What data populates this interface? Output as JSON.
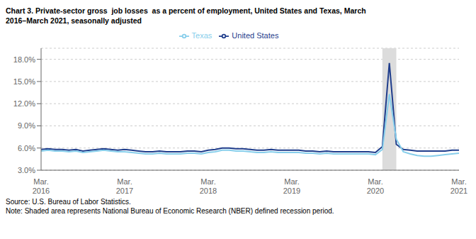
{
  "chart_data": {
    "type": "line",
    "title": "Chart 3. Private-sector gross  job losses  as a percent of employment, United States and Texas, March\n2016–March 2021, seasonally adjusted",
    "annotations": [
      "Source: U.S. Bureau of Labor Statistics.",
      "Note: Shaded area represents National Bureau of Economic Research (NBER) defined recession period."
    ],
    "categories": [
      "Mar.\n2016",
      null,
      null,
      null,
      null,
      null,
      null,
      null,
      null,
      null,
      null,
      null,
      "Mar.\n2017",
      null,
      null,
      null,
      null,
      null,
      null,
      null,
      null,
      null,
      null,
      null,
      "Mar.\n2018",
      null,
      null,
      null,
      null,
      null,
      null,
      null,
      null,
      null,
      null,
      null,
      "Mar.\n2019",
      null,
      null,
      null,
      null,
      null,
      null,
      null,
      null,
      null,
      null,
      null,
      "Mar.\n2020",
      null,
      null,
      null,
      null,
      null,
      null,
      null,
      null,
      null,
      null,
      null,
      "Mar.\n2021"
    ],
    "series": [
      {
        "name": "United States",
        "color": "#1F3D8C",
        "values": [
          5.8,
          5.9,
          5.8,
          5.8,
          5.7,
          5.8,
          5.6,
          5.7,
          5.8,
          5.9,
          5.8,
          5.7,
          5.8,
          5.7,
          5.6,
          5.5,
          5.5,
          5.6,
          5.5,
          5.5,
          5.5,
          5.6,
          5.6,
          5.5,
          5.7,
          5.8,
          6.0,
          6.0,
          5.9,
          5.9,
          5.8,
          5.7,
          5.7,
          5.8,
          5.7,
          5.7,
          5.7,
          5.7,
          5.6,
          5.6,
          5.5,
          5.6,
          5.5,
          5.5,
          5.5,
          5.5,
          5.5,
          5.5,
          5.4,
          6.2,
          17.5,
          6.5,
          5.8,
          5.7,
          5.6,
          5.6,
          5.6,
          5.6,
          5.6,
          5.7,
          5.7
        ]
      },
      {
        "name": "Texas",
        "color": "#87CEEB",
        "values": [
          5.6,
          5.7,
          5.6,
          5.6,
          5.5,
          5.6,
          5.4,
          5.5,
          5.6,
          5.7,
          5.6,
          5.5,
          5.5,
          5.4,
          5.3,
          5.2,
          5.2,
          5.3,
          5.2,
          5.2,
          5.2,
          5.3,
          5.3,
          5.2,
          5.4,
          5.5,
          5.7,
          5.7,
          5.6,
          5.6,
          5.5,
          5.4,
          5.4,
          5.5,
          5.4,
          5.4,
          5.4,
          5.4,
          5.3,
          5.3,
          5.2,
          5.3,
          5.2,
          5.2,
          5.2,
          5.2,
          5.2,
          5.2,
          5.1,
          5.8,
          13.3,
          7.2,
          5.5,
          5.2,
          5.0,
          4.9,
          4.9,
          5.0,
          5.1,
          5.2,
          5.3
        ]
      }
    ],
    "ylim": [
      3.0,
      19.5
    ],
    "yticks": [
      {
        "value": 3.0,
        "label": "3.0%"
      },
      {
        "value": 6.0,
        "label": "6.0%"
      },
      {
        "value": 9.0,
        "label": "9.0%"
      },
      {
        "value": 12.0,
        "label": "12.0%"
      },
      {
        "value": 15.0,
        "label": "15.0%"
      },
      {
        "value": 18.0,
        "label": "18.0%"
      }
    ],
    "grid": true,
    "legend": "top",
    "shaded_span": {
      "from": 49,
      "to": 51,
      "color": "#DCDCDC"
    }
  }
}
